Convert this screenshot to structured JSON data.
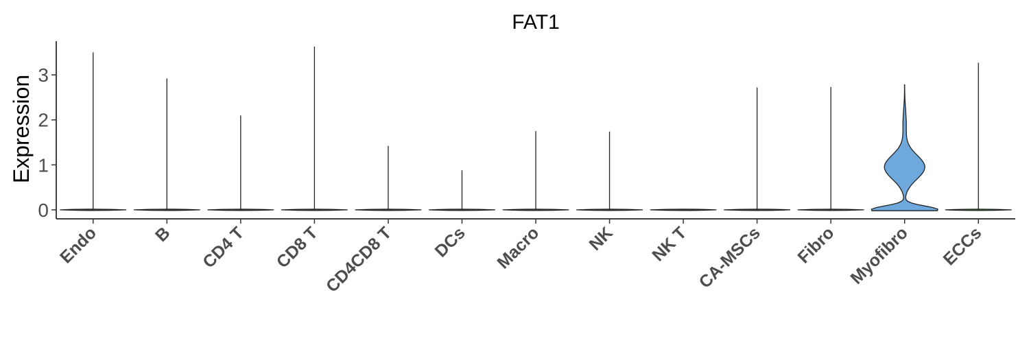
{
  "chart_data": {
    "type": "violin",
    "title": "FAT1",
    "xlabel": "",
    "ylabel": "Expression",
    "ylim": [
      -0.2,
      3.75
    ],
    "yticks": [
      0,
      1,
      2,
      3
    ],
    "grid": false,
    "legend": "none",
    "categories": [
      "Endo",
      "B",
      "CD4 T",
      "CD8 T",
      "CD4CD8 T",
      "DCs",
      "Macro",
      "NK",
      "NK T",
      "CA-MSCs",
      "Fibro",
      "Myofibro",
      "ECCs"
    ],
    "max_values": [
      3.5,
      2.92,
      2.1,
      3.63,
      1.42,
      0.88,
      1.75,
      1.74,
      0,
      2.72,
      2.73,
      2.78,
      3.27
    ],
    "shape": [
      {
        "name": "Endo",
        "color": "#4d4d4d",
        "profile": "zero"
      },
      {
        "name": "B",
        "color": "#4d4d4d",
        "profile": "zero"
      },
      {
        "name": "CD4 T",
        "color": "#4d4d4d",
        "profile": "zero"
      },
      {
        "name": "CD8 T",
        "color": "#4d4d4d",
        "profile": "zero"
      },
      {
        "name": "CD4CD8 T",
        "color": "#4d4d4d",
        "profile": "zero"
      },
      {
        "name": "DCs",
        "color": "#4d4d4d",
        "profile": "zero"
      },
      {
        "name": "Macro",
        "color": "#4d4d4d",
        "profile": "zero"
      },
      {
        "name": "NK",
        "color": "#4d4d4d",
        "profile": "zero"
      },
      {
        "name": "NK T",
        "color": "#4d4d4d",
        "profile": "zero"
      },
      {
        "name": "CA-MSCs",
        "color": "#4d4d4d",
        "profile": "zero"
      },
      {
        "name": "Fibro",
        "color": "#4d4d4d",
        "profile": "zero"
      },
      {
        "name": "Myofibro",
        "color": "#6fa8dc",
        "profile": "bimodal"
      },
      {
        "name": "ECCs",
        "color": "#2e7d32",
        "profile": "zero"
      }
    ]
  }
}
